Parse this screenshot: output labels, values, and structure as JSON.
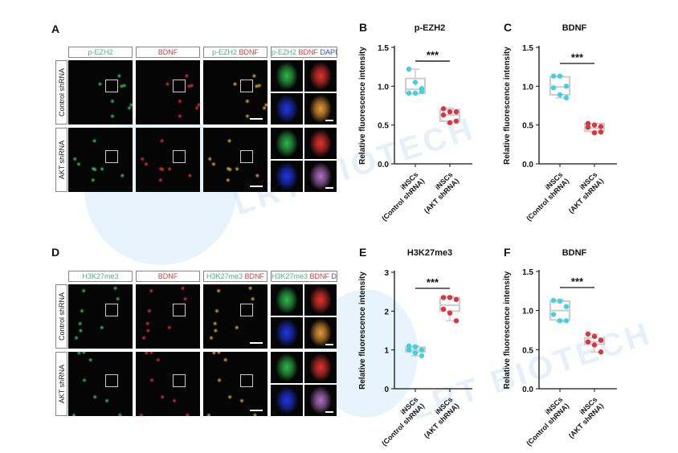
{
  "watermark": "LRT BIOTECH",
  "panels": {
    "A": {
      "label": "A",
      "headers": [
        [
          {
            "t": "p-EZH2",
            "c": "#4caf80"
          }
        ],
        [
          {
            "t": "BDNF",
            "c": "#d23b3b"
          }
        ],
        [
          {
            "t": "p-EZH2 ",
            "c": "#4caf80"
          },
          {
            "t": "BDNF",
            "c": "#d23b3b"
          }
        ],
        [
          {
            "t": "p-EZH2 ",
            "c": "#4caf80"
          },
          {
            "t": "BDNF ",
            "c": "#d23b3b"
          },
          {
            "t": "DAPI",
            "c": "#2d4fc4"
          }
        ]
      ],
      "rows": [
        "Control shRNA",
        "AKT shRNA"
      ]
    },
    "D": {
      "label": "D",
      "headers": [
        [
          {
            "t": "H3K27me3",
            "c": "#4caf80"
          }
        ],
        [
          {
            "t": "BDNF",
            "c": "#d23b3b"
          }
        ],
        [
          {
            "t": "H3K27me3 ",
            "c": "#4caf80"
          },
          {
            "t": "BDNF",
            "c": "#d23b3b"
          }
        ],
        [
          {
            "t": "H3K27me3 ",
            "c": "#4caf80"
          },
          {
            "t": "BDNF ",
            "c": "#d23b3b"
          },
          {
            "t": "DAPI",
            "c": "#2d4fc4"
          }
        ]
      ],
      "rows": [
        "Control shRNA",
        "AKT shRNA"
      ]
    }
  },
  "colors": {
    "control": "#3fd3e0",
    "akt": "#d9373f",
    "box": "#cccccc"
  },
  "chart_data": [
    {
      "panel": "B",
      "type": "box",
      "title": "p-EZH2",
      "ylabel": "Relative fluorescence intensity",
      "ylim": [
        0,
        1.5
      ],
      "yticks": [
        "0.0",
        "0.5",
        "1.0",
        "1.5"
      ],
      "yvals": [
        0,
        0.5,
        1,
        1.5
      ],
      "categories": [
        "iNSCs\n(Control shRNA)",
        "iNSCs\n(AKT shRNA)"
      ],
      "significance": "***",
      "series": [
        {
          "points": [
            1.22,
            1.05,
            0.97,
            0.91,
            0.91,
            0.93
          ],
          "box": [
            0.9,
            0.91,
            0.96,
            1.1,
            1.22
          ]
        },
        {
          "points": [
            0.71,
            0.67,
            0.67,
            0.63,
            0.53,
            0.55
          ],
          "box": [
            0.52,
            0.55,
            0.63,
            0.7,
            0.72
          ]
        }
      ]
    },
    {
      "panel": "C",
      "type": "box",
      "title": "BDNF",
      "ylabel": "Relative fluorescence intensity",
      "ylim": [
        0,
        1.5
      ],
      "yticks": [
        "0.0",
        "0.5",
        "1.0",
        "1.5"
      ],
      "yvals": [
        0,
        0.5,
        1,
        1.5
      ],
      "categories": [
        "iNSCs\n(Control shRNA)",
        "iNSCs\n(AKT shRNA)"
      ],
      "significance": "***",
      "series": [
        {
          "points": [
            1.13,
            1.13,
            1.0,
            0.98,
            0.89,
            0.85
          ],
          "box": [
            0.85,
            0.89,
            0.99,
            1.12,
            1.13
          ]
        },
        {
          "points": [
            0.52,
            0.5,
            0.48,
            0.47,
            0.4,
            0.41
          ],
          "box": [
            0.4,
            0.42,
            0.46,
            0.52,
            0.52
          ]
        }
      ]
    },
    {
      "panel": "E",
      "type": "box",
      "title": "H3K27me3",
      "ylabel": "Relative fluorescence intensity",
      "ylim": [
        0,
        3
      ],
      "yticks": [
        "0",
        "1",
        "2",
        "3"
      ],
      "yvals": [
        0,
        1,
        2,
        3
      ],
      "categories": [
        "iNSCs\n(Control shRNA)",
        "iNSCs\n(AKT shRNA)"
      ],
      "significance": "***",
      "series": [
        {
          "points": [
            1.1,
            1.08,
            1.0,
            1.0,
            0.92,
            0.85
          ],
          "box": [
            0.85,
            0.95,
            1.0,
            1.07,
            1.1
          ]
        },
        {
          "points": [
            2.35,
            2.35,
            2.3,
            2.05,
            1.95,
            1.75
          ],
          "box": [
            1.75,
            2.0,
            2.15,
            2.35,
            2.38
          ]
        }
      ]
    },
    {
      "panel": "F",
      "type": "box",
      "title": "BDNF",
      "ylabel": "Relative fluorescence intensity",
      "ylim": [
        0,
        1.5
      ],
      "yticks": [
        "0.0",
        "0.5",
        "1.0",
        "1.5"
      ],
      "yvals": [
        0,
        0.5,
        1,
        1.5
      ],
      "categories": [
        "iNSCs\n(Control shRNA)",
        "iNSCs\n(AKT shRNA)"
      ],
      "significance": "***",
      "series": [
        {
          "points": [
            1.13,
            1.12,
            1.05,
            0.95,
            0.87,
            0.87
          ],
          "box": [
            0.86,
            0.88,
            1.0,
            1.12,
            1.14
          ]
        },
        {
          "points": [
            0.7,
            0.67,
            0.62,
            0.6,
            0.56,
            0.47
          ],
          "box": [
            0.47,
            0.57,
            0.6,
            0.65,
            0.7
          ]
        }
      ]
    }
  ]
}
